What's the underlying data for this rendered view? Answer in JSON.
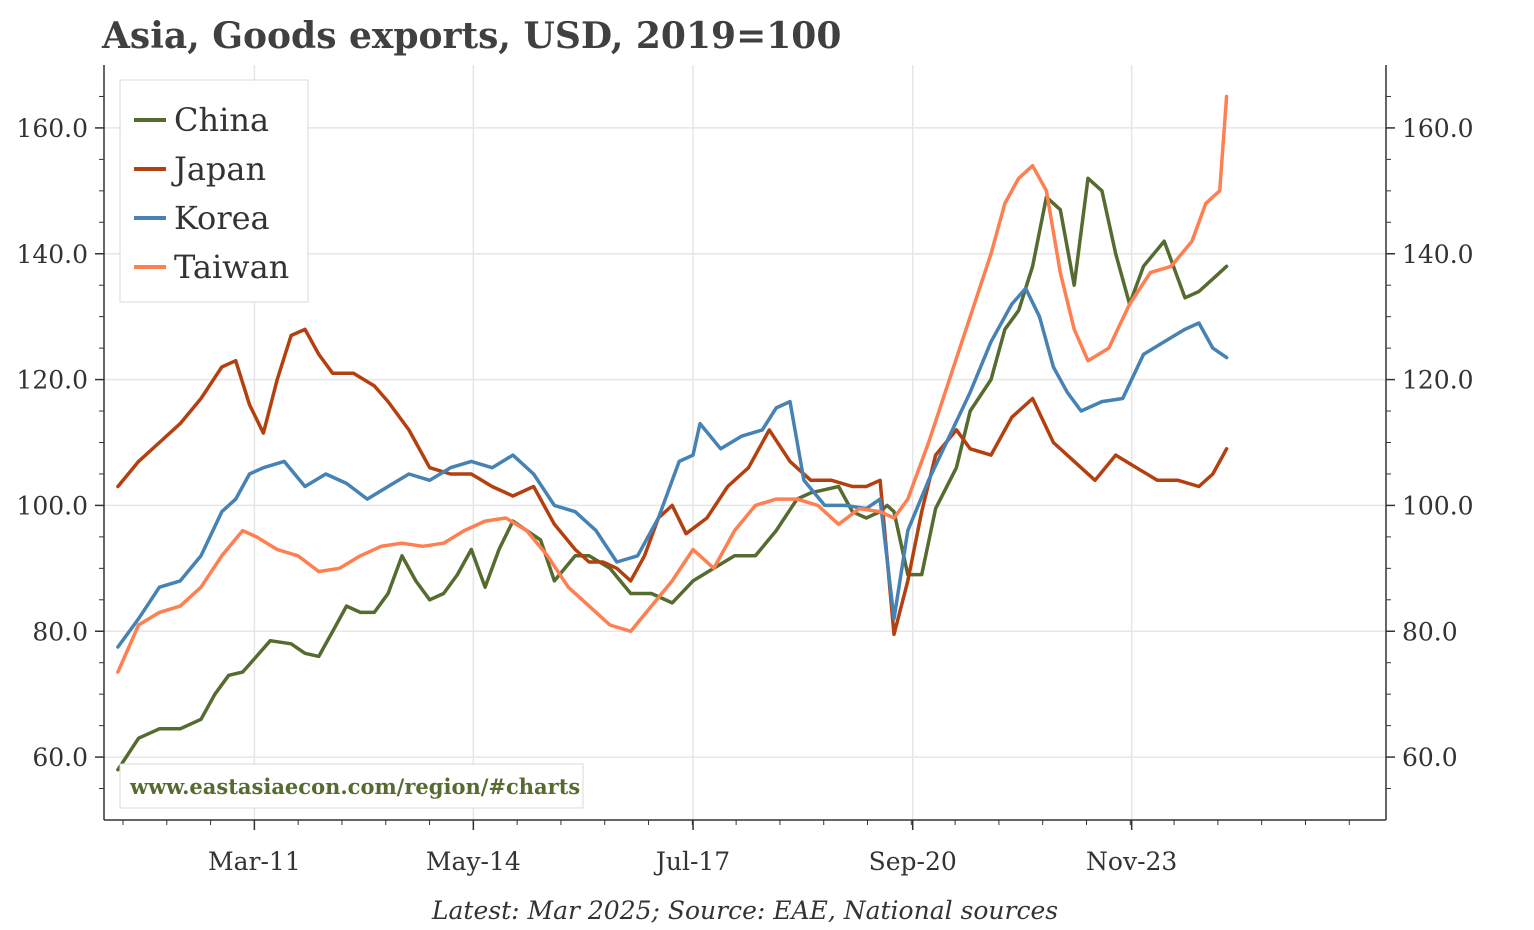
{
  "chart_data": {
    "type": "line",
    "title": "Asia, Goods exports, USD, 2019=100",
    "source_note": "Latest: Mar 2025; Source: EAE, National sources",
    "watermark": "www.eastasiaecon.com/region/#charts",
    "ylim": [
      50,
      170
    ],
    "yticks": [
      60,
      80,
      100,
      120,
      140,
      160
    ],
    "ytick_labels": [
      "60.0",
      "80.0",
      "100.0",
      "120.0",
      "140.0",
      "160.0"
    ],
    "xlim": [
      2009.0,
      2027.5
    ],
    "xticks": [
      2011.17,
      2014.33,
      2017.5,
      2020.67,
      2023.83
    ],
    "xtick_labels": [
      "Mar-11",
      "May-14",
      "Jul-17",
      "Sep-20",
      "Nov-23"
    ],
    "grid": true,
    "legend_position": "top-left",
    "series": [
      {
        "name": "China",
        "color": "#556B2F",
        "x": [
          2009.2,
          2009.5,
          2009.8,
          2010.1,
          2010.4,
          2010.6,
          2010.8,
          2011.0,
          2011.2,
          2011.4,
          2011.7,
          2011.9,
          2012.1,
          2012.3,
          2012.5,
          2012.7,
          2012.9,
          2013.1,
          2013.3,
          2013.5,
          2013.7,
          2013.9,
          2014.1,
          2014.3,
          2014.5,
          2014.7,
          2014.9,
          2015.1,
          2015.3,
          2015.5,
          2015.8,
          2016.0,
          2016.3,
          2016.6,
          2016.9,
          2017.2,
          2017.5,
          2017.8,
          2018.1,
          2018.4,
          2018.7,
          2019.0,
          2019.2,
          2019.4,
          2019.6,
          2019.8,
          2020.0,
          2020.2,
          2020.3,
          2020.4,
          2020.6,
          2020.8,
          2021.0,
          2021.3,
          2021.5,
          2021.8,
          2022.0,
          2022.2,
          2022.4,
          2022.6,
          2022.8,
          2023.0,
          2023.2,
          2023.4,
          2023.6,
          2023.8,
          2024.0,
          2024.3,
          2024.6,
          2024.8,
          2025.0,
          2025.2
        ],
        "values": [
          58,
          63,
          64.5,
          64.5,
          66,
          70,
          73,
          73.5,
          76,
          78.5,
          78,
          76.5,
          76,
          80,
          84,
          83,
          83,
          86,
          92,
          88,
          85,
          86,
          89,
          93,
          87,
          93,
          97.5,
          96,
          94.5,
          88,
          92,
          92,
          90,
          86,
          86,
          84.5,
          88,
          90,
          92,
          92,
          96,
          101,
          102,
          102.5,
          103,
          99,
          98,
          99,
          100,
          99,
          89,
          89,
          99.5,
          106,
          115,
          120,
          128,
          131,
          138,
          149,
          147,
          135,
          152,
          150,
          140,
          132,
          138,
          142,
          133,
          134,
          136,
          138
        ]
      },
      {
        "name": "Japan",
        "color": "#B5400F",
        "x": [
          2009.2,
          2009.5,
          2009.8,
          2010.1,
          2010.4,
          2010.7,
          2010.9,
          2011.1,
          2011.3,
          2011.5,
          2011.7,
          2011.9,
          2012.1,
          2012.3,
          2012.6,
          2012.9,
          2013.1,
          2013.4,
          2013.7,
          2014.0,
          2014.3,
          2014.6,
          2014.9,
          2015.2,
          2015.5,
          2015.8,
          2016.0,
          2016.2,
          2016.4,
          2016.6,
          2016.8,
          2017.0,
          2017.2,
          2017.4,
          2017.7,
          2018.0,
          2018.3,
          2018.6,
          2018.9,
          2019.2,
          2019.5,
          2019.8,
          2020.0,
          2020.2,
          2020.4,
          2020.6,
          2020.8,
          2021.0,
          2021.3,
          2021.5,
          2021.8,
          2022.1,
          2022.4,
          2022.7,
          2023.0,
          2023.3,
          2023.6,
          2023.9,
          2024.2,
          2024.5,
          2024.8,
          2025.0,
          2025.2
        ],
        "values": [
          103,
          107,
          110,
          113,
          117,
          122,
          123,
          116,
          111.5,
          120,
          127,
          128,
          124,
          121,
          121,
          119,
          116.5,
          112,
          106,
          105,
          105,
          103,
          101.5,
          103,
          97,
          93,
          91,
          91,
          90,
          88,
          92,
          98,
          100,
          95.5,
          98,
          103,
          106,
          112,
          107,
          104,
          104,
          103,
          103,
          104,
          79.5,
          88,
          99,
          108,
          112,
          109,
          108,
          114,
          117,
          110,
          107,
          104,
          108,
          106,
          104,
          104,
          103,
          105,
          109
        ]
      },
      {
        "name": "Korea",
        "color": "#4682B4",
        "x": [
          2009.2,
          2009.5,
          2009.8,
          2010.1,
          2010.4,
          2010.7,
          2010.9,
          2011.1,
          2011.3,
          2011.6,
          2011.9,
          2012.2,
          2012.5,
          2012.8,
          2013.1,
          2013.4,
          2013.7,
          2014.0,
          2014.3,
          2014.6,
          2014.9,
          2015.2,
          2015.5,
          2015.8,
          2016.1,
          2016.4,
          2016.7,
          2017.0,
          2017.3,
          2017.5,
          2017.6,
          2017.9,
          2018.2,
          2018.5,
          2018.7,
          2018.9,
          2019.1,
          2019.4,
          2019.7,
          2020.0,
          2020.2,
          2020.4,
          2020.6,
          2020.9,
          2021.2,
          2021.5,
          2021.8,
          2022.1,
          2022.3,
          2022.5,
          2022.7,
          2022.9,
          2023.1,
          2023.4,
          2023.7,
          2024.0,
          2024.3,
          2024.6,
          2024.8,
          2025.0,
          2025.2
        ],
        "values": [
          77.5,
          82,
          87,
          88,
          92,
          99,
          101,
          105,
          106,
          107,
          103,
          105,
          103.5,
          101,
          103,
          105,
          104,
          106,
          107,
          106,
          108,
          105,
          100,
          99,
          96,
          91,
          92,
          98,
          107,
          108,
          113,
          109,
          111,
          112,
          115.5,
          116.5,
          104,
          100,
          100,
          99.5,
          101,
          82,
          96,
          104,
          111,
          118,
          126,
          132,
          134.5,
          130,
          122,
          118,
          115,
          116.5,
          117,
          124,
          126,
          128,
          129,
          125,
          123.5
        ]
      },
      {
        "name": "Taiwan",
        "color": "#FF7F50",
        "x": [
          2009.2,
          2009.5,
          2009.8,
          2010.1,
          2010.4,
          2010.7,
          2011.0,
          2011.2,
          2011.5,
          2011.8,
          2012.1,
          2012.4,
          2012.7,
          2013.0,
          2013.3,
          2013.6,
          2013.9,
          2014.2,
          2014.5,
          2014.8,
          2015.1,
          2015.4,
          2015.7,
          2016.0,
          2016.3,
          2016.6,
          2016.9,
          2017.2,
          2017.5,
          2017.8,
          2018.1,
          2018.4,
          2018.7,
          2019.0,
          2019.3,
          2019.6,
          2019.9,
          2020.2,
          2020.4,
          2020.6,
          2020.9,
          2021.2,
          2021.5,
          2021.8,
          2022.0,
          2022.2,
          2022.4,
          2022.6,
          2022.8,
          2023.0,
          2023.2,
          2023.5,
          2023.8,
          2024.1,
          2024.4,
          2024.7,
          2024.9,
          2025.1,
          2025.2
        ],
        "values": [
          73.5,
          81,
          83,
          84,
          87,
          92,
          96,
          95,
          93,
          92,
          89.5,
          90,
          92,
          93.5,
          94,
          93.5,
          94,
          96,
          97.5,
          98,
          96,
          92,
          87,
          84,
          81,
          80,
          84,
          88,
          93,
          90,
          96,
          100,
          101,
          101,
          100,
          97,
          99.5,
          99,
          98,
          101,
          110,
          120,
          130,
          140,
          148,
          152,
          154,
          150,
          137,
          128,
          123,
          125,
          132,
          137,
          138,
          142,
          148,
          150,
          165
        ]
      }
    ]
  }
}
